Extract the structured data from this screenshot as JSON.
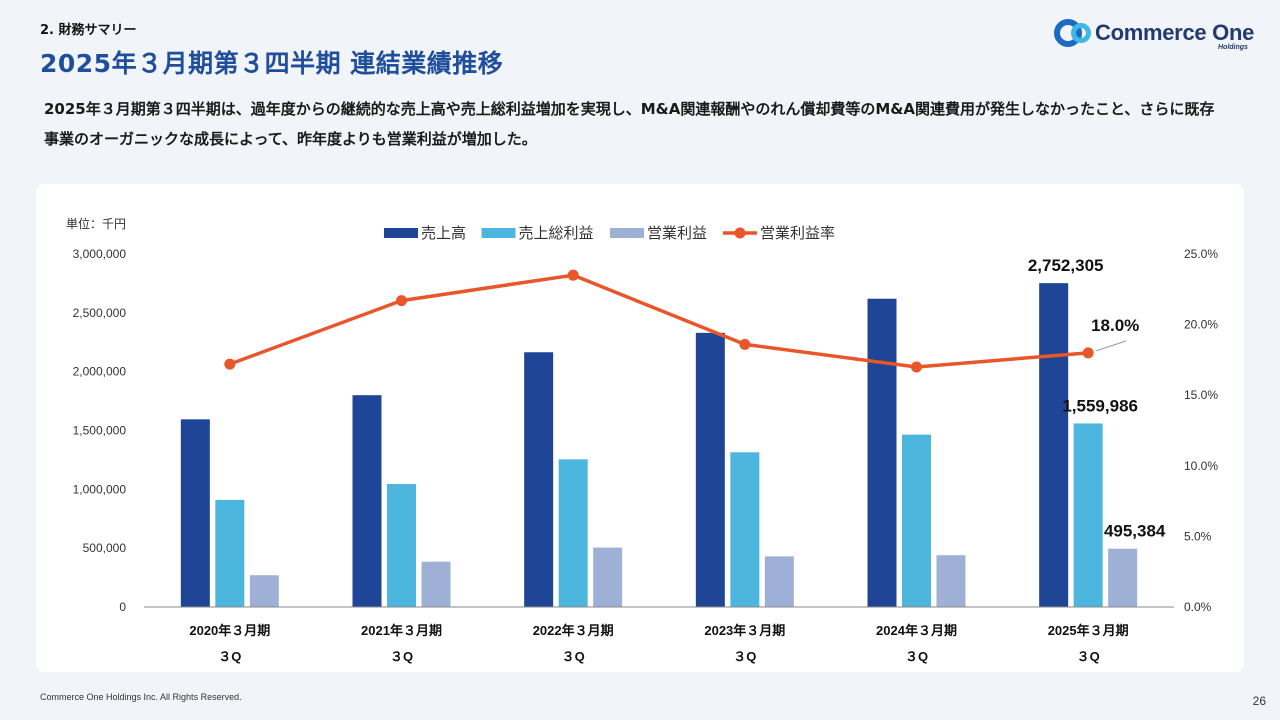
{
  "header": {
    "section_label": "2. 財務サマリー",
    "title": "2025年３月期第３四半期 連結業績推移",
    "description": "2025年３月期第３四半期は、過年度からの継続的な売上高や売上総利益増加を実現し、M&A関連報酬やのれん償却費等のM&A関連費用が発生しなかったこと、さらに既存事業のオーガニックな成長によって、昨年度よりも営業利益が増加した。"
  },
  "logo": {
    "name": "Commerce One",
    "sub": "Holdings",
    "colors": {
      "primary": "#1a6bc4",
      "secondary": "#3fb8e6",
      "text": "#233a6e"
    }
  },
  "footer": {
    "copyright": "Commerce One Holdings Inc. All Rights Reserved.",
    "page_number": "26"
  },
  "chart_data": {
    "type": "bar",
    "unit_label": "単位：千円",
    "categories": [
      [
        "2020年３月期",
        "３Q"
      ],
      [
        "2021年３月期",
        "３Q"
      ],
      [
        "2022年３月期",
        "３Q"
      ],
      [
        "2023年３月期",
        "３Q"
      ],
      [
        "2024年３月期",
        "３Q"
      ],
      [
        "2025年３月期",
        "３Q"
      ]
    ],
    "y_left": {
      "min": 0,
      "max": 3000000,
      "ticks": [
        "0",
        "500,000",
        "1,000,000",
        "1,500,000",
        "2,000,000",
        "2,500,000",
        "3,000,000"
      ]
    },
    "y_right": {
      "min": 0,
      "max": 25,
      "ticks": [
        "0.0%",
        "5.0%",
        "10.0%",
        "15.0%",
        "20.0%",
        "25.0%"
      ]
    },
    "legend_position": "top",
    "grid": false,
    "series": [
      {
        "name": "売上高",
        "kind": "bar",
        "axis": "left",
        "color": "#1f4696",
        "values": [
          1595000,
          1800000,
          2165000,
          2330000,
          2620000,
          2752305
        ]
      },
      {
        "name": "売上総利益",
        "kind": "bar",
        "axis": "left",
        "color": "#4cb6de",
        "values": [
          910000,
          1045000,
          1255000,
          1315000,
          1465000,
          1559986
        ]
      },
      {
        "name": "営業利益",
        "kind": "bar",
        "axis": "left",
        "color": "#9fb0d6",
        "values": [
          270000,
          385000,
          505000,
          430000,
          440000,
          495384
        ]
      },
      {
        "name": "営業利益率",
        "kind": "line",
        "axis": "right",
        "color": "#e8562a",
        "values": [
          17.2,
          21.7,
          23.5,
          18.6,
          17.0,
          18.0
        ]
      }
    ],
    "data_labels": [
      {
        "series": 0,
        "index": 5,
        "text": "2,752,305"
      },
      {
        "series": 1,
        "index": 5,
        "text": "1,559,986"
      },
      {
        "series": 2,
        "index": 5,
        "text": "495,384"
      },
      {
        "series": 3,
        "index": 5,
        "text": "18.0%"
      }
    ]
  }
}
